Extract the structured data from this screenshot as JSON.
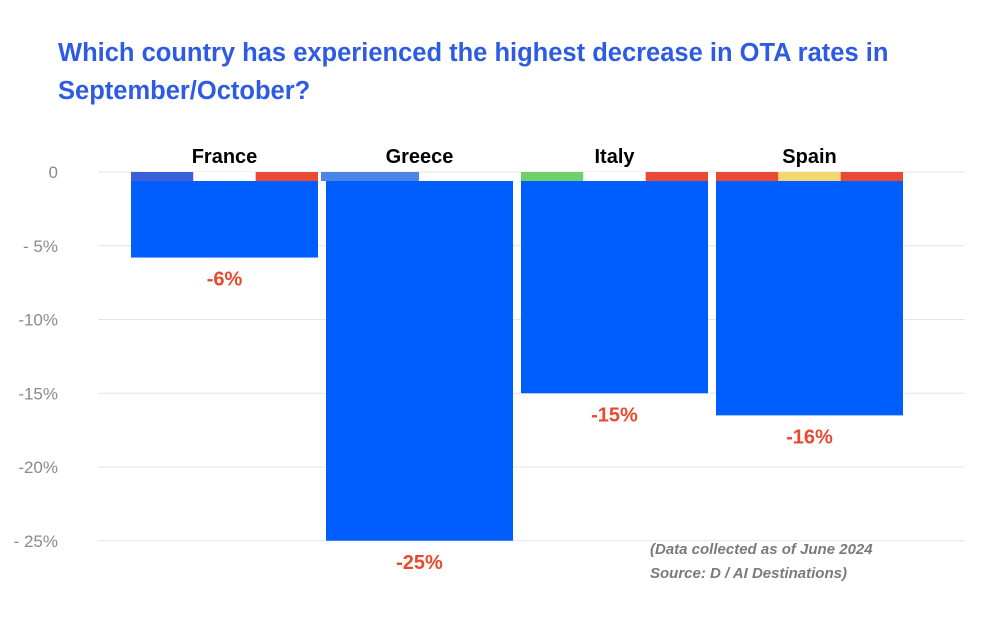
{
  "title": "Which country has experienced the highest decrease in OTA rates in September/October?",
  "source_note_line1": "(Data collected as of June 2024",
  "source_note_line2": "Source: D / AI Destinations)",
  "colors": {
    "bar": "#005efe",
    "title": "#2e5be3",
    "value_label": "#e8492f",
    "axis_text": "#8a8a8a",
    "grid": "#e6e6e6"
  },
  "chart_data": {
    "type": "bar",
    "title": "Which country has experienced the highest decrease in OTA rates in September/October?",
    "categories": [
      "France",
      "Greece",
      "Italy",
      "Spain"
    ],
    "values": [
      -5.8,
      -25,
      -15,
      -16.5
    ],
    "value_labels": [
      "-6%",
      "-25%",
      "-15%",
      "-16%"
    ],
    "flag_colors": [
      [
        "#3b5fd9",
        "#ffffff",
        "#e84a33"
      ],
      [
        "#4a86e8"
      ],
      [
        "#6fcf6a",
        "#ffffff",
        "#e84a33"
      ],
      [
        "#e84a33",
        "#f5d76e",
        "#e84a33"
      ]
    ],
    "yticks": [
      0,
      -5,
      -10,
      -15,
      -20,
      -25
    ],
    "ytick_labels": [
      "0",
      "- 5%",
      "-10%",
      "-15%",
      "-20%",
      "- 25%"
    ],
    "ylim": [
      -25,
      0
    ],
    "grid": true,
    "legend": "none"
  }
}
